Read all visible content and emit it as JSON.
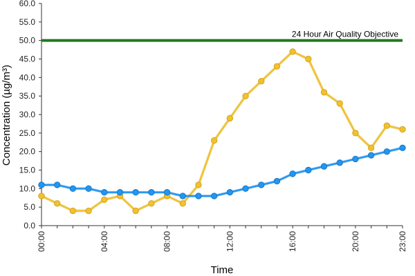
{
  "chart_data": {
    "type": "line",
    "title": "",
    "xlabel": "Time",
    "ylabel": "Concentration (µg/m³)",
    "ylim": [
      0,
      60
    ],
    "y_tick_step": 5,
    "y_ticks": [
      "0.0",
      "5.0",
      "10.0",
      "15.0",
      "20.0",
      "25.0",
      "30.0",
      "35.0",
      "40.0",
      "45.0",
      "50.0",
      "55.0",
      "60.0"
    ],
    "x": [
      "00:00",
      "01:00",
      "02:00",
      "03:00",
      "04:00",
      "05:00",
      "06:00",
      "07:00",
      "08:00",
      "09:00",
      "10:00",
      "11:00",
      "12:00",
      "13:00",
      "14:00",
      "15:00",
      "16:00",
      "17:00",
      "18:00",
      "19:00",
      "20:00",
      "21:00",
      "22:00",
      "23:00"
    ],
    "x_tick_labels": [
      "00:00",
      "04:00",
      "08:00",
      "12:00",
      "16:00",
      "20:00",
      "23:00"
    ],
    "grid": false,
    "legend": "none",
    "series": [
      {
        "color": "#f2c12e",
        "edge_color": "#d4a520",
        "values": [
          8,
          6,
          4,
          4,
          7,
          8,
          4,
          6,
          8,
          6,
          11,
          23,
          29,
          35,
          39,
          43,
          47,
          45,
          36,
          33,
          25,
          21,
          27,
          26
        ]
      },
      {
        "color": "#2196f3",
        "edge_color": "#1a78c2",
        "values": [
          11,
          11,
          10,
          10,
          9,
          9,
          9,
          9,
          9,
          8,
          8,
          8,
          9,
          10,
          11,
          12,
          14,
          15,
          16,
          17,
          18,
          19,
          20,
          21
        ]
      }
    ],
    "reference_line": {
      "value": 50,
      "label": "24 Hour Air Quality Objective",
      "color": "#1e7a1e"
    }
  }
}
